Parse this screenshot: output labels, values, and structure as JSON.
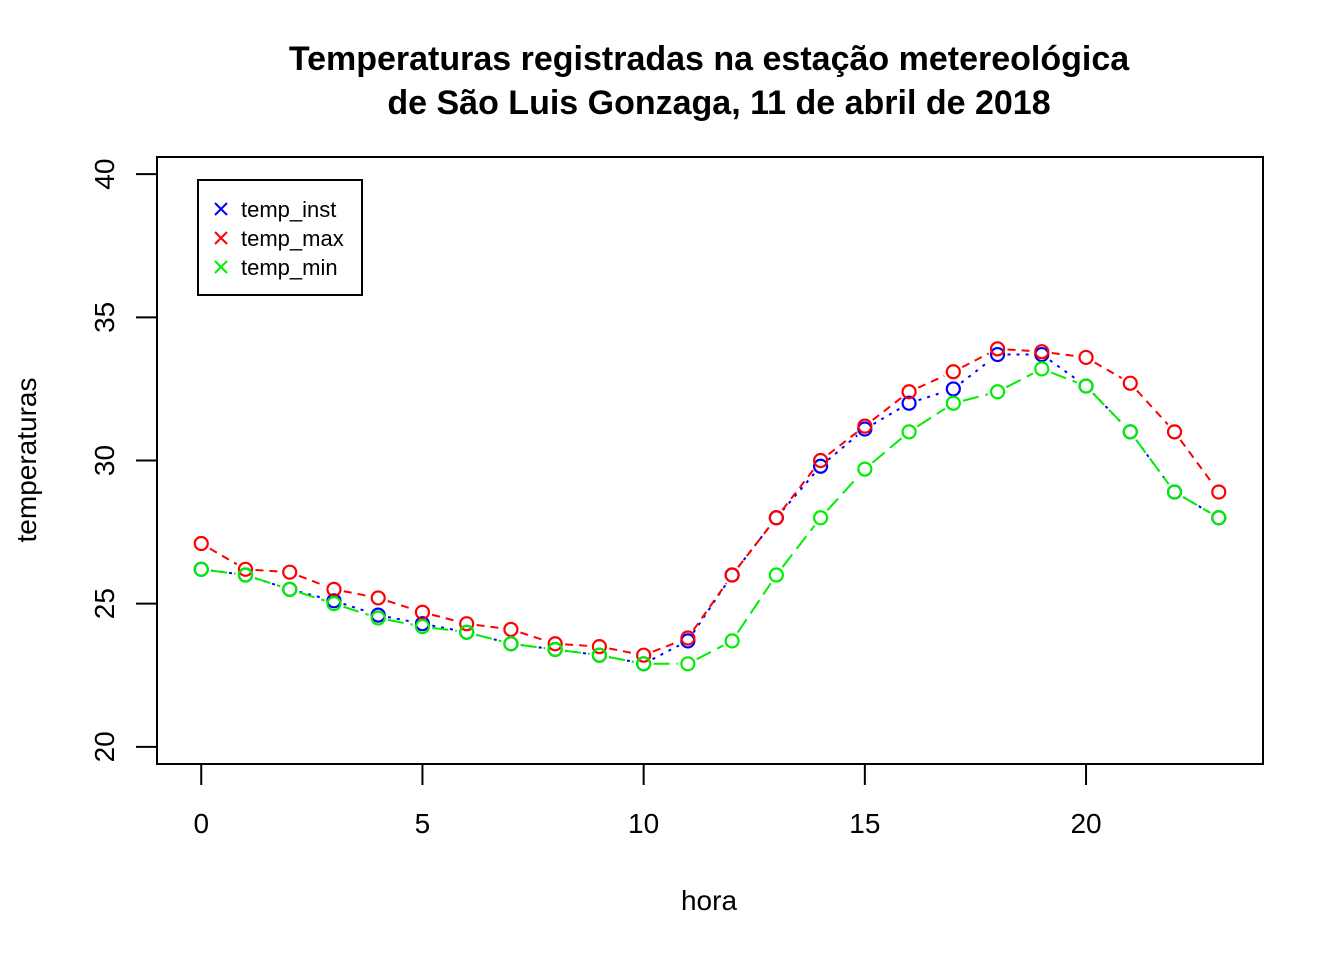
{
  "chart_data": {
    "type": "line",
    "title": [
      "Temperaturas registradas na estação metereológica",
      "de São Luis Gonzaga, 11 de abril de 2018"
    ],
    "xlabel": "hora",
    "ylabel": "temperaturas",
    "xlim": [
      -1,
      24
    ],
    "ylim": [
      19.4,
      40.6
    ],
    "xticks": [
      0,
      5,
      10,
      15,
      20
    ],
    "xtick_labels": [
      "0",
      "5",
      "10",
      "15",
      "20"
    ],
    "yticks": [
      20,
      25,
      30,
      35,
      40
    ],
    "ytick_labels": [
      "20",
      "25",
      "30",
      "35",
      "40"
    ],
    "grid": false,
    "legend_position": "top-left",
    "x": [
      0,
      1,
      2,
      3,
      4,
      5,
      6,
      7,
      8,
      9,
      10,
      11,
      12,
      13,
      14,
      15,
      16,
      17,
      18,
      19,
      20,
      21,
      22,
      23
    ],
    "series": [
      {
        "name": "temp_inst",
        "color": "#0000ff",
        "line_style": "dotted",
        "marker": "circle",
        "values": [
          26.2,
          26.0,
          25.5,
          25.1,
          24.6,
          24.3,
          24.0,
          23.6,
          23.4,
          23.2,
          22.9,
          23.7,
          26.0,
          28.0,
          29.8,
          31.1,
          32.0,
          32.5,
          33.7,
          33.7,
          32.6,
          31.0,
          28.9,
          28.0
        ]
      },
      {
        "name": "temp_max",
        "color": "#ff0000",
        "line_style": "dashed",
        "marker": "circle",
        "values": [
          27.1,
          26.2,
          26.1,
          25.5,
          25.2,
          24.7,
          24.3,
          24.1,
          23.6,
          23.5,
          23.2,
          23.8,
          26.0,
          28.0,
          30.0,
          31.2,
          32.4,
          33.1,
          33.9,
          33.8,
          33.6,
          32.7,
          31.0,
          28.9
        ]
      },
      {
        "name": "temp_min",
        "color": "#00ee00",
        "line_style": "longdash",
        "marker": "circle",
        "values": [
          26.2,
          26.0,
          25.5,
          25.0,
          24.5,
          24.2,
          24.0,
          23.6,
          23.4,
          23.2,
          22.9,
          22.9,
          23.7,
          26.0,
          28.0,
          29.7,
          31.0,
          32.0,
          32.4,
          33.2,
          32.6,
          31.0,
          28.9,
          28.0
        ]
      }
    ]
  }
}
